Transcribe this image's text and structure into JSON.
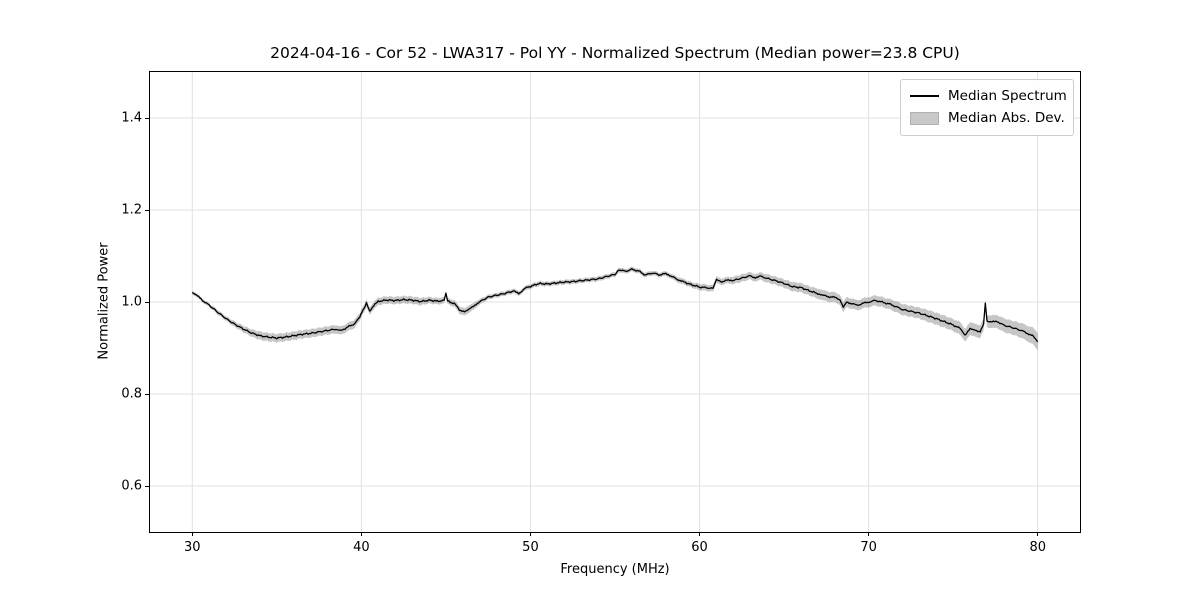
{
  "chart_data": {
    "type": "line",
    "title": "2024-04-16 - Cor 52 - LWA317 - Pol YY - Normalized Spectrum (Median power=23.8 CPU)",
    "xlabel": "Frequency (MHz)",
    "ylabel": "Normalized Power",
    "xlim": [
      27.5,
      82.5
    ],
    "ylim": [
      0.5,
      1.5
    ],
    "xticks": [
      30,
      40,
      50,
      60,
      70,
      80
    ],
    "yticks": [
      0.6,
      0.8,
      1.0,
      1.2,
      1.4
    ],
    "grid": true,
    "colors": {
      "line": "#000000",
      "band": "rgba(128,128,128,0.45)",
      "gridline": "#e0e0e0",
      "spine": "#000000",
      "legend_border": "#cccccc"
    },
    "legend": {
      "position": "upper right",
      "entries": [
        {
          "label": "Median Spectrum",
          "swatch": "line",
          "color": "#000000"
        },
        {
          "label": "Median Abs. Dev.",
          "swatch": "patch",
          "color": "#c9c9c9"
        }
      ]
    },
    "noise_amplitude": 0.0022,
    "series": [
      {
        "name": "Median Spectrum",
        "x": [
          30.0,
          30.3,
          30.6,
          31.0,
          31.5,
          32.0,
          32.5,
          33.0,
          33.5,
          34.0,
          34.5,
          35.0,
          35.5,
          36.0,
          36.5,
          37.0,
          37.5,
          38.0,
          38.5,
          38.8,
          39.2,
          39.6,
          39.9,
          40.1,
          40.3,
          40.5,
          40.8,
          41.0,
          41.5,
          42.0,
          42.5,
          43.0,
          43.5,
          44.0,
          44.5,
          44.9,
          45.0,
          45.1,
          45.5,
          45.8,
          46.1,
          46.4,
          46.7,
          47.0,
          47.5,
          48.0,
          48.5,
          49.0,
          49.3,
          49.6,
          50.0,
          50.5,
          51.0,
          51.5,
          52.0,
          52.5,
          53.0,
          53.5,
          54.0,
          54.5,
          55.0,
          55.2,
          55.6,
          56.0,
          56.4,
          56.8,
          57.2,
          57.6,
          58.0,
          58.3,
          58.7,
          59.0,
          59.5,
          60.0,
          60.4,
          60.8,
          61.0,
          61.3,
          61.7,
          62.0,
          62.5,
          63.0,
          63.3,
          63.6,
          64.0,
          64.5,
          65.0,
          65.5,
          66.0,
          66.5,
          67.0,
          67.3,
          67.6,
          68.0,
          68.3,
          68.5,
          68.7,
          69.0,
          69.3,
          69.7,
          70.0,
          70.4,
          70.8,
          71.2,
          71.6,
          72.0,
          72.5,
          73.0,
          73.5,
          74.0,
          74.5,
          75.0,
          75.4,
          75.7,
          76.0,
          76.3,
          76.6,
          76.8,
          76.9,
          77.0,
          77.3,
          77.6,
          78.0,
          78.5,
          79.0,
          79.4,
          79.7,
          80.0
        ],
        "y": [
          1.021,
          1.013,
          1.004,
          0.993,
          0.978,
          0.964,
          0.952,
          0.942,
          0.933,
          0.927,
          0.924,
          0.922,
          0.924,
          0.927,
          0.93,
          0.932,
          0.935,
          0.938,
          0.941,
          0.937,
          0.946,
          0.953,
          0.966,
          0.982,
          0.997,
          0.979,
          0.995,
          1.001,
          1.004,
          1.003,
          1.005,
          1.004,
          1.001,
          1.004,
          1.002,
          1.003,
          1.02,
          1.002,
          0.997,
          0.982,
          0.98,
          0.984,
          0.993,
          1.001,
          1.011,
          1.015,
          1.019,
          1.024,
          1.018,
          1.028,
          1.034,
          1.04,
          1.039,
          1.041,
          1.043,
          1.044,
          1.046,
          1.048,
          1.05,
          1.055,
          1.06,
          1.07,
          1.067,
          1.071,
          1.067,
          1.059,
          1.063,
          1.059,
          1.062,
          1.057,
          1.049,
          1.045,
          1.038,
          1.033,
          1.031,
          1.029,
          1.048,
          1.044,
          1.048,
          1.047,
          1.052,
          1.057,
          1.053,
          1.056,
          1.051,
          1.046,
          1.04,
          1.033,
          1.031,
          1.024,
          1.018,
          1.014,
          1.012,
          1.01,
          1.006,
          0.99,
          1.001,
          0.996,
          0.993,
          0.997,
          1.0,
          1.003,
          1.0,
          0.996,
          0.99,
          0.984,
          0.98,
          0.976,
          0.97,
          0.964,
          0.957,
          0.95,
          0.943,
          0.929,
          0.941,
          0.939,
          0.936,
          0.953,
          0.997,
          0.959,
          0.956,
          0.958,
          0.949,
          0.944,
          0.938,
          0.932,
          0.926,
          0.914
        ],
        "mad": [
          0.004,
          0.004,
          0.004,
          0.004,
          0.005,
          0.005,
          0.006,
          0.007,
          0.008,
          0.009,
          0.009,
          0.009,
          0.009,
          0.009,
          0.009,
          0.009,
          0.009,
          0.009,
          0.009,
          0.009,
          0.009,
          0.009,
          0.008,
          0.008,
          0.008,
          0.008,
          0.008,
          0.008,
          0.008,
          0.008,
          0.008,
          0.008,
          0.008,
          0.007,
          0.007,
          0.007,
          0.005,
          0.007,
          0.007,
          0.008,
          0.008,
          0.008,
          0.007,
          0.006,
          0.005,
          0.005,
          0.005,
          0.005,
          0.005,
          0.005,
          0.005,
          0.005,
          0.005,
          0.005,
          0.005,
          0.005,
          0.005,
          0.005,
          0.005,
          0.005,
          0.005,
          0.005,
          0.005,
          0.005,
          0.005,
          0.005,
          0.005,
          0.005,
          0.005,
          0.005,
          0.006,
          0.006,
          0.006,
          0.007,
          0.007,
          0.007,
          0.007,
          0.007,
          0.007,
          0.008,
          0.008,
          0.008,
          0.008,
          0.008,
          0.009,
          0.009,
          0.009,
          0.01,
          0.01,
          0.01,
          0.011,
          0.011,
          0.011,
          0.011,
          0.011,
          0.011,
          0.011,
          0.011,
          0.011,
          0.011,
          0.011,
          0.011,
          0.011,
          0.011,
          0.012,
          0.012,
          0.012,
          0.012,
          0.013,
          0.013,
          0.013,
          0.013,
          0.014,
          0.014,
          0.014,
          0.014,
          0.014,
          0.013,
          0.009,
          0.013,
          0.014,
          0.014,
          0.015,
          0.015,
          0.016,
          0.017,
          0.018,
          0.019
        ]
      }
    ]
  }
}
